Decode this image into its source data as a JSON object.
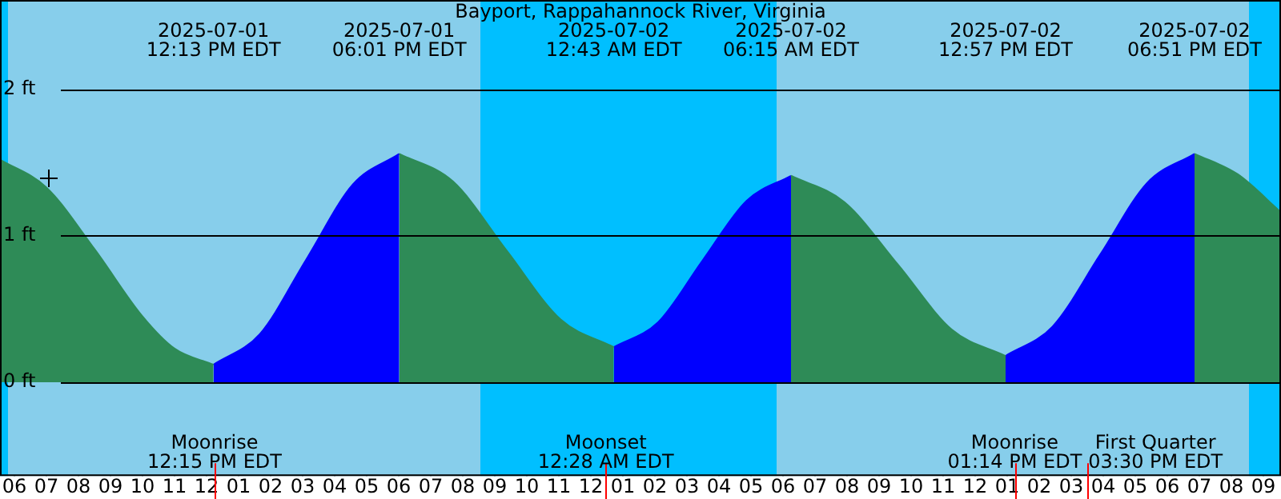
{
  "chart_data": {
    "type": "area",
    "title": "Bayport, Rappahannock River, Virginia",
    "x": [
      "2025-07-01T05:33",
      "2025-07-01T07:00",
      "2025-07-01T08:30",
      "2025-07-01T10:00",
      "2025-07-01T11:00",
      "2025-07-01T12:13",
      "2025-07-01T13:40",
      "2025-07-01T15:07",
      "2025-07-01T16:34",
      "2025-07-01T18:01",
      "2025-07-01T19:42",
      "2025-07-01T21:22",
      "2025-07-01T23:03",
      "2025-07-02T00:43",
      "2025-07-02T02:06",
      "2025-07-02T03:29",
      "2025-07-02T04:52",
      "2025-07-02T06:15",
      "2025-07-02T07:55",
      "2025-07-02T09:36",
      "2025-07-02T11:16",
      "2025-07-02T12:57",
      "2025-07-02T14:25",
      "2025-07-02T15:54",
      "2025-07-02T17:22",
      "2025-07-02T18:51",
      "2025-07-02T20:12",
      "2025-07-02T21:33"
    ],
    "series": [
      {
        "color": "#2e8b57",
        "values": [
          1.52,
          1.33,
          0.91,
          0.45,
          0.23,
          0.12,
          null,
          null,
          null,
          1.56,
          1.37,
          0.9,
          0.43,
          0.24,
          null,
          null,
          null,
          1.41,
          1.23,
          0.8,
          0.36,
          0.18,
          null,
          null,
          null,
          1.56,
          1.42,
          1.16
        ]
      },
      {
        "color": "#0000ff",
        "values": [
          null,
          null,
          null,
          null,
          null,
          0.12,
          0.33,
          0.84,
          1.35,
          1.56,
          null,
          null,
          null,
          0.24,
          0.41,
          0.83,
          1.24,
          1.41,
          null,
          null,
          null,
          0.18,
          0.38,
          0.87,
          1.36,
          1.56,
          null,
          null
        ]
      }
    ],
    "xlim": [
      "2025-07-01T05:33",
      "2025-07-02T21:33"
    ],
    "xticks": [
      {
        "value": "2025-07-01T06:00",
        "label": "06"
      },
      {
        "value": "2025-07-01T07:00",
        "label": "07"
      },
      {
        "value": "2025-07-01T08:00",
        "label": "08"
      },
      {
        "value": "2025-07-01T09:00",
        "label": "09"
      },
      {
        "value": "2025-07-01T10:00",
        "label": "10"
      },
      {
        "value": "2025-07-01T11:00",
        "label": "11"
      },
      {
        "value": "2025-07-01T12:00",
        "label": "12"
      },
      {
        "value": "2025-07-01T13:00",
        "label": "01"
      },
      {
        "value": "2025-07-01T14:00",
        "label": "02"
      },
      {
        "value": "2025-07-01T15:00",
        "label": "03"
      },
      {
        "value": "2025-07-01T16:00",
        "label": "04"
      },
      {
        "value": "2025-07-01T17:00",
        "label": "05"
      },
      {
        "value": "2025-07-01T18:00",
        "label": "06"
      },
      {
        "value": "2025-07-01T19:00",
        "label": "07"
      },
      {
        "value": "2025-07-01T20:00",
        "label": "08"
      },
      {
        "value": "2025-07-01T21:00",
        "label": "09"
      },
      {
        "value": "2025-07-01T22:00",
        "label": "10"
      },
      {
        "value": "2025-07-01T23:00",
        "label": "11"
      },
      {
        "value": "2025-07-02T00:00",
        "label": "12"
      },
      {
        "value": "2025-07-02T01:00",
        "label": "01"
      },
      {
        "value": "2025-07-02T02:00",
        "label": "02"
      },
      {
        "value": "2025-07-02T03:00",
        "label": "03"
      },
      {
        "value": "2025-07-02T04:00",
        "label": "04"
      },
      {
        "value": "2025-07-02T05:00",
        "label": "05"
      },
      {
        "value": "2025-07-02T06:00",
        "label": "06"
      },
      {
        "value": "2025-07-02T07:00",
        "label": "07"
      },
      {
        "value": "2025-07-02T08:00",
        "label": "08"
      },
      {
        "value": "2025-07-02T09:00",
        "label": "09"
      },
      {
        "value": "2025-07-02T10:00",
        "label": "10"
      },
      {
        "value": "2025-07-02T11:00",
        "label": "11"
      },
      {
        "value": "2025-07-02T12:00",
        "label": "12"
      },
      {
        "value": "2025-07-02T13:00",
        "label": "01"
      },
      {
        "value": "2025-07-02T14:00",
        "label": "02"
      },
      {
        "value": "2025-07-02T15:00",
        "label": "03"
      },
      {
        "value": "2025-07-02T16:00",
        "label": "04"
      },
      {
        "value": "2025-07-02T17:00",
        "label": "05"
      },
      {
        "value": "2025-07-02T18:00",
        "label": "06"
      },
      {
        "value": "2025-07-02T19:00",
        "label": "07"
      },
      {
        "value": "2025-07-02T20:00",
        "label": "08"
      },
      {
        "value": "2025-07-02T21:00",
        "label": "09"
      }
    ],
    "x2lim": [
      "2025-07-01T05:33",
      "2025-07-02T21:33"
    ],
    "x2ticks": [
      {
        "value": "2025-07-01T12:13",
        "label": "2025-07-01\n12:13 PM EDT"
      },
      {
        "value": "2025-07-01T18:01",
        "label": "2025-07-01\n06:01 PM EDT"
      },
      {
        "value": "2025-07-02T00:43",
        "label": "2025-07-02\n12:43 AM EDT"
      },
      {
        "value": "2025-07-02T06:15",
        "label": "2025-07-02\n06:15 AM EDT"
      },
      {
        "value": "2025-07-02T12:57",
        "label": "2025-07-02\n12:57 PM EDT"
      },
      {
        "value": "2025-07-02T18:51",
        "label": "2025-07-02\n06:51 PM EDT"
      }
    ],
    "ylim": [
      -0.64,
      2.61
    ],
    "yticks": [
      {
        "value": 0,
        "label": "0 ft"
      },
      {
        "value": 1,
        "label": "1 ft"
      },
      {
        "value": 2,
        "label": "2 ft"
      }
    ],
    "grid": "y",
    "legend": false,
    "marker": "none",
    "bands": [
      {
        "axis": "x",
        "from": "2025-07-01T05:33",
        "to": "2025-07-01T05:48",
        "color": "#00bfff"
      },
      {
        "axis": "x",
        "from": "2025-07-01T05:48",
        "to": "2025-07-01T20:33",
        "color": "#87ceeb"
      },
      {
        "axis": "x",
        "from": "2025-07-01T20:33",
        "to": "2025-07-02T05:48",
        "color": "#00bfff"
      },
      {
        "axis": "x",
        "from": "2025-07-02T05:48",
        "to": "2025-07-02T20:33",
        "color": "#87ceeb"
      },
      {
        "axis": "x",
        "from": "2025-07-02T20:33",
        "to": "2025-07-02T21:33",
        "color": "#00bfff"
      }
    ],
    "ref_lines": [
      {
        "axis": "x",
        "value": "2025-07-01T12:15",
        "label": "Moonrise\n12:15 PM EDT",
        "color": "#ff0000"
      },
      {
        "axis": "x",
        "value": "2025-07-02T00:28",
        "label": "Moonset\n12:28 AM EDT",
        "color": "#ff0000"
      },
      {
        "axis": "x",
        "value": "2025-07-02T13:14",
        "label": "Moonrise\n01:14 PM EDT",
        "color": "#ff0000"
      },
      {
        "axis": "x",
        "value": "2025-07-02T15:30",
        "label": "First Quarter\n03:30 PM EDT",
        "color": "#ff0000"
      }
    ]
  }
}
